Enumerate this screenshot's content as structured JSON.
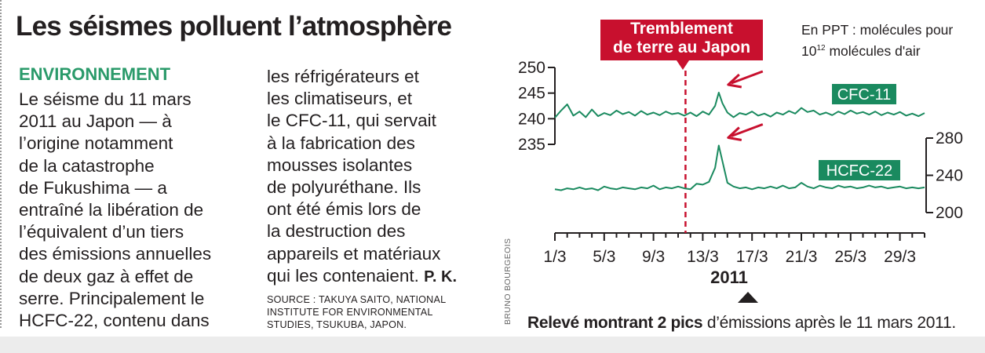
{
  "article": {
    "title": "Les séismes polluent l’atmosphère",
    "kicker": "ENVIRONNEMENT",
    "col1_lines": [
      "Le séisme du 11 mars",
      "2011 au Japon — à",
      "l’origine notamment",
      "de la catastrophe",
      "de Fukushima — a",
      "entraîné la libération de",
      "l’équivalent d’un tiers",
      "des émissions annuelles",
      "de deux gaz à effet de",
      "serre. Principalement le",
      "HCFC-22, contenu dans"
    ],
    "col2_lines": [
      "les réfrigérateurs et",
      "les climatiseurs, et",
      "le CFC-11, qui servait",
      "à la fabrication des",
      "mousses isolantes",
      "de polyuréthane. Ils",
      "ont été émis lors de",
      "la destruction des",
      "appareils et matériaux",
      "qui les contenaient."
    ],
    "signature": "P. K.",
    "source_lines": [
      "SOURCE : TAKUYA SAITO, NATIONAL",
      "INSTITUTE FOR ENVIRONMENTAL",
      "STUDIES, TSUKUBA, JAPON."
    ],
    "credit": "BRUNO BOURGEOIS"
  },
  "chart_data": {
    "type": "line",
    "annotation": {
      "line1": "Tremblement",
      "line2": "de terre au Japon",
      "x": 11.6,
      "color": "#c8102e"
    },
    "unit_line1": "En PPT : molécules pour",
    "unit_base": "10",
    "unit_exp": "12",
    "unit_rest": " molécules d'air",
    "x_axis": {
      "min": 1,
      "max": 31,
      "ticks": [
        1,
        2,
        3,
        4,
        5,
        6,
        7,
        8,
        9,
        10,
        11,
        12,
        13,
        14,
        15,
        16,
        17,
        18,
        19,
        20,
        21,
        22,
        23,
        24,
        25,
        26,
        27,
        28,
        29,
        30,
        31
      ],
      "labeled_ticks": [
        1,
        5,
        9,
        13,
        17,
        21,
        25,
        29
      ],
      "labels": [
        "1/3",
        "5/3",
        "9/3",
        "13/3",
        "17/3",
        "21/3",
        "25/3",
        "29/3"
      ],
      "year": "2011"
    },
    "left_axis": {
      "min": 235,
      "max": 250,
      "ticks": [
        235,
        240,
        245,
        250
      ],
      "labels": [
        "235",
        "240",
        "245",
        "250"
      ]
    },
    "right_axis": {
      "min": 200,
      "max": 280,
      "ticks": [
        200,
        240,
        280
      ],
      "labels": [
        "200",
        "240",
        "280"
      ]
    },
    "series": [
      {
        "name": "CFC-11",
        "color": "#1a8a5f",
        "axis": "left",
        "x": [
          1.0,
          1.5,
          2.0,
          2.5,
          3.0,
          3.5,
          4.0,
          4.5,
          5.0,
          5.5,
          6.0,
          6.5,
          7.0,
          7.5,
          8.0,
          8.5,
          9.0,
          9.5,
          10.0,
          10.5,
          11.0,
          11.5,
          12.0,
          12.5,
          13.0,
          13.5,
          14.0,
          14.3,
          14.6,
          15.0,
          15.5,
          16.0,
          16.5,
          17.0,
          17.5,
          18.0,
          18.5,
          19.0,
          19.5,
          20.0,
          20.5,
          21.0,
          21.5,
          22.0,
          22.5,
          23.0,
          23.5,
          24.0,
          24.5,
          25.0,
          25.5,
          26.0,
          26.5,
          27.0,
          27.5,
          28.0,
          28.5,
          29.0,
          29.5,
          30.0,
          30.5,
          31.0
        ],
        "values": [
          240.2,
          241.6,
          242.8,
          240.6,
          241.4,
          240.3,
          241.8,
          240.5,
          241.1,
          240.7,
          241.6,
          240.9,
          241.3,
          240.6,
          241.5,
          240.8,
          241.2,
          240.7,
          241.4,
          240.9,
          241.1,
          240.6,
          241.2,
          240.5,
          241.4,
          240.8,
          242.5,
          245.1,
          243.0,
          241.2,
          240.3,
          241.1,
          240.8,
          241.4,
          240.6,
          241.0,
          240.4,
          241.2,
          240.8,
          241.5,
          241.0,
          242.1,
          241.3,
          241.6,
          240.8,
          241.2,
          240.7,
          241.4,
          240.9,
          241.6,
          241.0,
          241.3,
          240.8,
          241.4,
          240.7,
          241.2,
          240.8,
          241.3,
          240.6,
          241.0,
          240.5,
          241.1
        ]
      },
      {
        "name": "HCFC-22",
        "color": "#1a8a5f",
        "axis": "right",
        "x": [
          1.0,
          1.5,
          2.0,
          2.5,
          3.0,
          3.5,
          4.0,
          4.5,
          5.0,
          5.5,
          6.0,
          6.5,
          7.0,
          7.5,
          8.0,
          8.5,
          9.0,
          9.5,
          10.0,
          10.5,
          11.0,
          11.5,
          12.0,
          12.5,
          13.0,
          13.5,
          14.0,
          14.3,
          14.6,
          15.0,
          15.5,
          16.0,
          16.5,
          17.0,
          17.5,
          18.0,
          18.5,
          19.0,
          19.5,
          20.0,
          20.5,
          21.0,
          21.5,
          22.0,
          22.5,
          23.0,
          23.5,
          24.0,
          24.5,
          25.0,
          25.5,
          26.0,
          26.5,
          27.0,
          27.5,
          28.0,
          28.5,
          29.0,
          29.5,
          30.0,
          30.5,
          31.0
        ],
        "values": [
          225,
          224,
          226,
          225,
          227,
          225,
          226,
          224,
          228,
          226,
          225,
          227,
          226,
          225,
          227,
          226,
          229,
          225,
          227,
          226,
          228,
          226,
          225,
          231,
          230,
          233,
          248,
          272,
          255,
          232,
          228,
          226,
          227,
          225,
          227,
          226,
          228,
          226,
          229,
          226,
          227,
          232,
          228,
          226,
          229,
          227,
          226,
          229,
          227,
          228,
          226,
          227,
          229,
          227,
          228,
          226,
          227,
          228,
          226,
          227,
          226,
          227
        ]
      }
    ],
    "arrows": [
      {
        "x": 14.3,
        "axis": "left",
        "y": 245.1,
        "color": "#c8102e"
      },
      {
        "x": 14.3,
        "axis": "right",
        "y": 272,
        "color": "#c8102e"
      }
    ]
  },
  "caption": {
    "bold": "Relevé montrant 2 pics",
    "rest": " d’émissions après le 11 mars 2011."
  }
}
